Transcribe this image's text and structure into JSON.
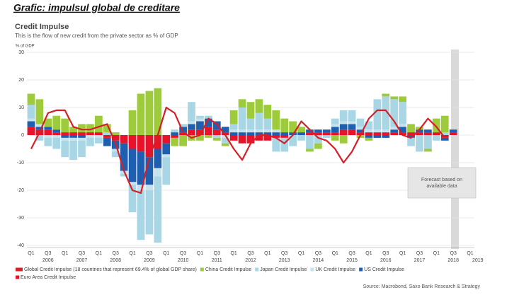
{
  "header": "Grafic: impulsul global de creditare",
  "chart_data": {
    "type": "stacked-bar-line",
    "title": "Credit Impulse",
    "subtitle": "This is the flow of new credit from the private sector as % of GDP",
    "ylabel": "% of GDP",
    "annotation": "Forecast based on available data",
    "source": "Source: Macrobond, Saxo Bank Research & Strategy",
    "categories": [
      "Q1",
      null,
      "Q3",
      null,
      "Q1",
      null,
      "Q3",
      null,
      "Q1",
      null,
      "Q3",
      null,
      "Q1",
      null,
      "Q3",
      null,
      "Q1",
      null,
      "Q3",
      null,
      "Q1",
      null,
      "Q3",
      null,
      "Q1",
      null,
      "Q3",
      null,
      "Q1",
      null,
      "Q3",
      null,
      "Q1",
      null,
      "Q3",
      null,
      "Q1",
      null,
      "Q3",
      null,
      "Q1",
      null,
      "Q3",
      null,
      "Q1",
      null,
      "Q3",
      null,
      "Q1",
      null,
      "Q3",
      null,
      "Q1"
    ],
    "years": [
      "2006",
      "2007",
      "2008",
      "2009",
      "2010",
      "2011",
      "2012",
      "2013",
      "2014",
      "2015",
      "2016",
      "2017",
      "2018",
      "2019"
    ],
    "ylim": [
      -40,
      30
    ],
    "yticks": [
      -40,
      -30,
      -20,
      -10,
      0,
      10,
      20,
      30
    ],
    "grid": true,
    "line": {
      "name": "Global Credit Impulse (18 countries that represent 69.4% of global GDP share)",
      "color": "#d42027",
      "values": [
        -5,
        1,
        8,
        9,
        9,
        3,
        2,
        2,
        3,
        4,
        -3,
        -13,
        -20,
        -21,
        -8,
        0,
        10,
        8,
        1,
        -1,
        0,
        6,
        4,
        0,
        -5,
        -9,
        -3,
        0,
        0,
        -1,
        -3,
        0,
        5,
        2,
        -1,
        -2,
        -5,
        -10,
        -6,
        0,
        6,
        9,
        9,
        5,
        0,
        -1,
        2,
        6,
        3,
        -1,
        null,
        null,
        null
      ]
    },
    "series": [
      {
        "name": "Euro Area Credit Impulse",
        "color": "#e8132a",
        "values": [
          3,
          2,
          2,
          1,
          1,
          1,
          1,
          1,
          1,
          -1,
          -2,
          -3,
          -5,
          -6,
          -8,
          -5,
          -3,
          -1,
          1,
          2,
          2,
          3,
          2,
          1,
          -2,
          -3,
          -3,
          -2,
          -2,
          -1,
          -1,
          0,
          0,
          1,
          1,
          1,
          1,
          2,
          2,
          1,
          1,
          1,
          1,
          1,
          1,
          1,
          1,
          1,
          1,
          -1,
          1,
          null,
          null
        ]
      },
      {
        "name": "US Credit Impulse",
        "color": "#1f5fb0",
        "values": [
          2,
          1,
          1,
          1,
          -1,
          -1,
          -1,
          0,
          0,
          -3,
          -3,
          -10,
          -12,
          -12,
          -10,
          -7,
          -4,
          1,
          2,
          2,
          3,
          3,
          3,
          2,
          1,
          1,
          1,
          1,
          1,
          1,
          1,
          1,
          1,
          1,
          1,
          1,
          2,
          2,
          2,
          1,
          -1,
          -1,
          -1,
          1,
          2,
          -1,
          1,
          1,
          0,
          -1,
          1,
          null,
          null
        ]
      },
      {
        "name": "UK Credit Impulse",
        "color": "#c6e2ee",
        "values": [
          1,
          1,
          -1,
          -1,
          -1,
          -1,
          -1,
          -1,
          -1,
          0,
          -1,
          -1,
          -1,
          -2,
          -2,
          -3,
          -1,
          0,
          0,
          1,
          1,
          0,
          0,
          -1,
          1,
          1,
          1,
          1,
          1,
          1,
          0,
          0,
          0,
          0,
          0,
          0,
          1,
          1,
          1,
          1,
          1,
          1,
          1,
          1,
          1,
          0,
          0,
          0,
          0,
          0,
          0,
          null,
          null
        ]
      },
      {
        "name": "Japan Credit Impulse",
        "color": "#a9d6e5",
        "values": [
          5,
          -2,
          -3,
          -4,
          -6,
          -7,
          -6,
          -3,
          -2,
          1,
          -2,
          -1,
          -10,
          -18,
          -16,
          -24,
          -10,
          1,
          1,
          7,
          1,
          1,
          -1,
          -2,
          2,
          8,
          4,
          6,
          4,
          -5,
          -5,
          -4,
          -2,
          -5,
          -3,
          -1,
          2,
          4,
          4,
          3,
          3,
          11,
          12,
          10,
          8,
          -3,
          -6,
          -5,
          -2,
          1,
          0,
          null,
          null
        ]
      },
      {
        "name": "China Credit Impulse",
        "color": "#9dcb3b",
        "values": [
          4,
          9,
          3,
          5,
          5,
          2,
          3,
          3,
          6,
          3,
          1,
          0,
          9,
          15,
          16,
          17,
          0,
          -3,
          -4,
          -2,
          -2,
          -1,
          -1,
          -1,
          5,
          3,
          6,
          5,
          5,
          7,
          5,
          4,
          2,
          -1,
          -2,
          0,
          -2,
          -3,
          0,
          -1,
          -1,
          0,
          1,
          1,
          2,
          3,
          1,
          -1,
          5,
          6,
          0,
          null,
          null
        ]
      }
    ]
  }
}
